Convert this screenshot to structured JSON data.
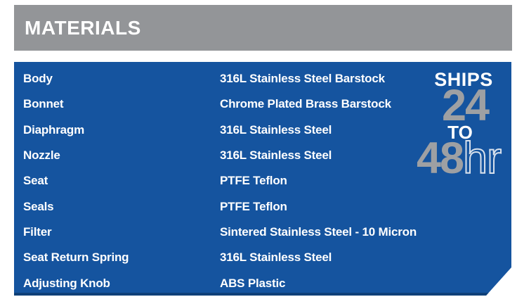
{
  "header": {
    "title": "MATERIALS"
  },
  "table": {
    "rows": [
      {
        "label": "Body",
        "value": "316L Stainless Steel Barstock"
      },
      {
        "label": "Bonnet",
        "value": "Chrome Plated Brass Barstock"
      },
      {
        "label": "Diaphragm",
        "value": "316L Stainless Steel"
      },
      {
        "label": "Nozzle",
        "value": "316L Stainless Steel"
      },
      {
        "label": "Seat",
        "value": "PTFE Teflon"
      },
      {
        "label": "Seals",
        "value": "PTFE Teflon"
      },
      {
        "label": "Filter",
        "value": "Sintered Stainless Steel - 10 Micron"
      },
      {
        "label": "Seat Return Spring",
        "value": "316L Stainless Steel"
      },
      {
        "label": "Adjusting Knob",
        "value": "ABS Plastic"
      }
    ]
  },
  "badge": {
    "line1": "SHIPS",
    "line2": "24",
    "line3": "TO",
    "line4_number": "48",
    "line4_unit": "hr"
  },
  "colors": {
    "panel_blue": "#15549F",
    "panel_bottom_edge": "#0F4078",
    "header_gray": "#939598",
    "badge_gray": "#9EA0A3",
    "text_white": "#FFFFFF"
  }
}
